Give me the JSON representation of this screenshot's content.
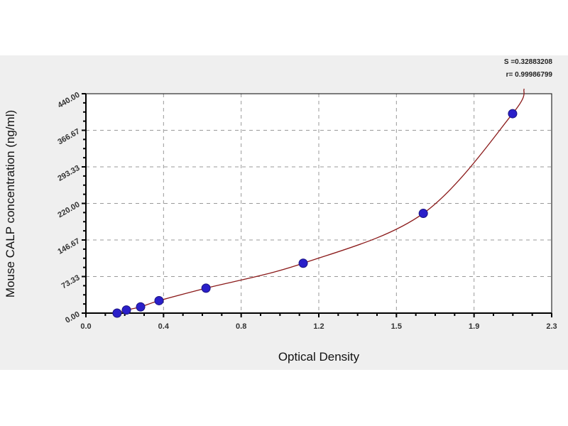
{
  "chart_data": {
    "type": "scatter",
    "title": "",
    "xlabel": "Optical Density",
    "ylabel": "Mouse CALP concentration (ng/ml)",
    "xlim": [
      0,
      2.3
    ],
    "ylim": [
      0,
      440
    ],
    "xticks": [
      "0.0",
      "0.4",
      "0.8",
      "1.2",
      "1.5",
      "1.9",
      "2.3"
    ],
    "yticks": [
      "0.00",
      "73.33",
      "146.67",
      "220.00",
      "293.33",
      "366.67",
      "440.00"
    ],
    "grid": true,
    "series": [
      {
        "x": [
          0.154,
          0.2,
          0.27,
          0.361,
          0.593,
          1.073,
          1.666,
          2.107
        ],
        "y": [
          0,
          6.25,
          12.5,
          25,
          50,
          100,
          200,
          400
        ],
        "marker_color": "#2a1fc9",
        "line_color": "#8b1a1a",
        "fit": "curve"
      }
    ],
    "annotations": [
      "S =0.32883208",
      "r= 0.99986799"
    ]
  }
}
